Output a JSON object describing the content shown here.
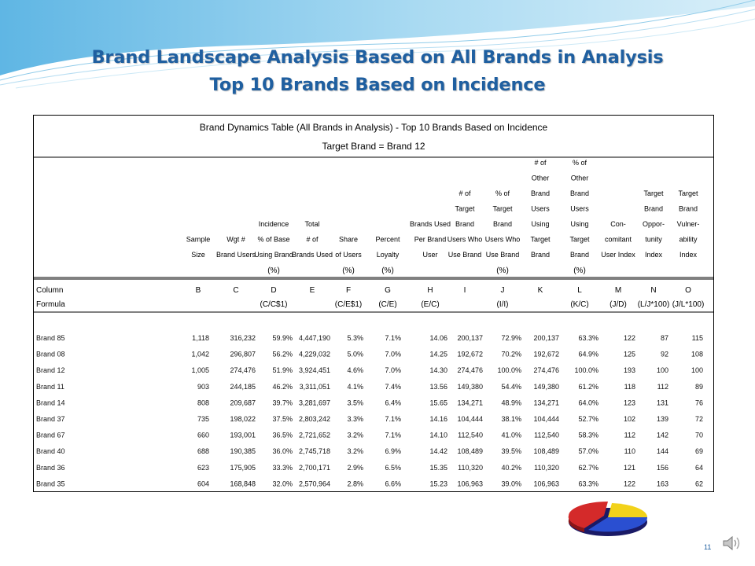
{
  "slide": {
    "title_line1": "Brand Landscape Analysis Based on All Brands in Analysis",
    "title_line2": "Top 10 Brands Based on Incidence",
    "page_number": "11"
  },
  "table": {
    "caption": "Brand Dynamics Table (All Brands in Analysis) - Top 10 Brands Based on Incidence",
    "subcaption": "Target Brand = Brand 12",
    "headers": [
      [
        "Sample",
        "Size"
      ],
      [
        "Wgt #",
        "Brand Users"
      ],
      [
        "Incidence",
        "% of Base",
        "Using Brand"
      ],
      [
        "Total",
        "# of",
        "Brands Used"
      ],
      [
        "Share",
        "of Users"
      ],
      [
        "Percent",
        "Loyalty"
      ],
      [
        "Brands Used",
        "Per Brand",
        "User"
      ],
      [
        "# of",
        "Target",
        "Brand",
        "Users Who",
        "Use Brand"
      ],
      [
        "% of",
        "Target",
        "Brand",
        "Users Who",
        "Use Brand"
      ],
      [
        "# of",
        "Other",
        "Brand",
        "Users",
        "Using",
        "Target",
        "Brand"
      ],
      [
        "% of",
        "Other",
        "Brand",
        "Users",
        "Using",
        "Target",
        "Brand"
      ],
      [
        "Con-",
        "comitant",
        "User Index"
      ],
      [
        "Target",
        "Brand",
        "Oppor-",
        "tunity",
        "Index"
      ],
      [
        "Target",
        "Brand",
        "Vulner-",
        "ability",
        "Index"
      ]
    ],
    "units": [
      "",
      "",
      "(%)",
      "",
      "(%)",
      "(%)",
      "",
      "",
      "(%)",
      "",
      "(%)",
      "",
      "",
      ""
    ],
    "column_label": "Column",
    "column_letters": [
      "B",
      "C",
      "D",
      "E",
      "F",
      "G",
      "H",
      "I",
      "J",
      "K",
      "L",
      "M",
      "N",
      "O"
    ],
    "formula_label": "Formula",
    "formulas": [
      "",
      "",
      "(C/C$1)",
      "",
      "(C/E$1)",
      "(C/E)",
      "(E/C)",
      "",
      "(I/I)",
      "",
      "(K/C)",
      "(J/D)",
      "(L/J*100)",
      "(J/L*100)"
    ],
    "rows": [
      {
        "brand": "Brand 85",
        "values": [
          "1,118",
          "316,232",
          "59.9%",
          "4,447,190",
          "5.3%",
          "7.1%",
          "14.06",
          "200,137",
          "72.9%",
          "200,137",
          "63.3%",
          "122",
          "87",
          "115"
        ]
      },
      {
        "brand": "Brand 08",
        "values": [
          "1,042",
          "296,807",
          "56.2%",
          "4,229,032",
          "5.0%",
          "7.0%",
          "14.25",
          "192,672",
          "70.2%",
          "192,672",
          "64.9%",
          "125",
          "92",
          "108"
        ]
      },
      {
        "brand": "Brand 12",
        "values": [
          "1,005",
          "274,476",
          "51.9%",
          "3,924,451",
          "4.6%",
          "7.0%",
          "14.30",
          "274,476",
          "100.0%",
          "274,476",
          "100.0%",
          "193",
          "100",
          "100"
        ]
      },
      {
        "brand": "Brand 11",
        "values": [
          "903",
          "244,185",
          "46.2%",
          "3,311,051",
          "4.1%",
          "7.4%",
          "13.56",
          "149,380",
          "54.4%",
          "149,380",
          "61.2%",
          "118",
          "112",
          "89"
        ]
      },
      {
        "brand": "Brand 14",
        "values": [
          "808",
          "209,687",
          "39.7%",
          "3,281,697",
          "3.5%",
          "6.4%",
          "15.65",
          "134,271",
          "48.9%",
          "134,271",
          "64.0%",
          "123",
          "131",
          "76"
        ]
      },
      {
        "brand": "Brand 37",
        "values": [
          "735",
          "198,022",
          "37.5%",
          "2,803,242",
          "3.3%",
          "7.1%",
          "14.16",
          "104,444",
          "38.1%",
          "104,444",
          "52.7%",
          "102",
          "139",
          "72"
        ]
      },
      {
        "brand": "Brand 67",
        "values": [
          "660",
          "193,001",
          "36.5%",
          "2,721,652",
          "3.2%",
          "7.1%",
          "14.10",
          "112,540",
          "41.0%",
          "112,540",
          "58.3%",
          "112",
          "142",
          "70"
        ]
      },
      {
        "brand": "Brand 40",
        "values": [
          "688",
          "190,385",
          "36.0%",
          "2,745,718",
          "3.2%",
          "6.9%",
          "14.42",
          "108,489",
          "39.5%",
          "108,489",
          "57.0%",
          "110",
          "144",
          "69"
        ]
      },
      {
        "brand": "Brand 36",
        "values": [
          "623",
          "175,905",
          "33.3%",
          "2,700,171",
          "2.9%",
          "6.5%",
          "15.35",
          "110,320",
          "40.2%",
          "110,320",
          "62.7%",
          "121",
          "156",
          "64"
        ]
      },
      {
        "brand": "Brand 35",
        "values": [
          "604",
          "168,848",
          "32.0%",
          "2,570,964",
          "2.8%",
          "6.6%",
          "15.23",
          "106,963",
          "39.0%",
          "106,963",
          "63.3%",
          "122",
          "163",
          "62"
        ]
      }
    ]
  },
  "colors": {
    "title": "#1f5fa0",
    "swoosh": "#7fc4e8",
    "pie_red": "#d42a2a",
    "pie_yellow": "#f2d21a",
    "pie_blue": "#2a4fd1"
  }
}
